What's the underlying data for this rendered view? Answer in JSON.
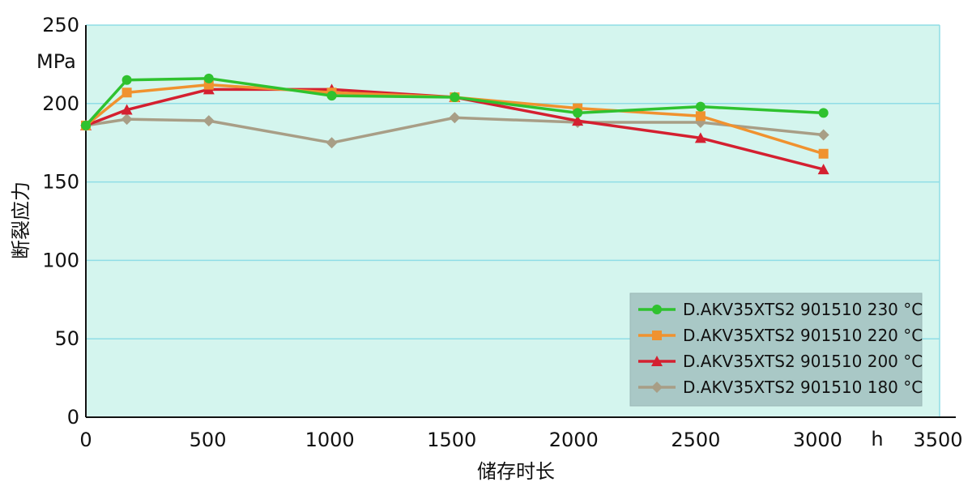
{
  "chart_data": {
    "type": "line",
    "title": "",
    "xlabel": "储存时长",
    "ylabel": "断裂应力",
    "y_unit": "MPa",
    "x_unit": "h",
    "xlim": [
      0,
      3500
    ],
    "ylim": [
      0,
      250
    ],
    "x_ticks": [
      0,
      500,
      1000,
      1500,
      2000,
      2500,
      3000,
      3500
    ],
    "y_ticks": [
      0,
      50,
      100,
      150,
      200,
      250
    ],
    "grid": "horizontal",
    "legend_position": "bottom-right",
    "series": [
      {
        "name": "D.AKV35XTS2 901510 230 °C",
        "color": "#2fc22f",
        "marker": "circle",
        "x": [
          0,
          168,
          504,
          1008,
          1512,
          2016,
          2520,
          3024
        ],
        "y": [
          186,
          215,
          216,
          205,
          204,
          194,
          198,
          194
        ]
      },
      {
        "name": "D.AKV35XTS2 901510 220 °C",
        "color": "#f0922f",
        "marker": "square",
        "x": [
          0,
          168,
          504,
          1008,
          1512,
          2016,
          2520,
          3024
        ],
        "y": [
          186,
          207,
          212,
          207,
          204,
          197,
          192,
          168
        ]
      },
      {
        "name": "D.AKV35XTS2 901510 200 °C",
        "color": "#d42030",
        "marker": "triangle",
        "x": [
          0,
          168,
          504,
          1008,
          1512,
          2016,
          2520,
          3024
        ],
        "y": [
          186,
          196,
          209,
          209,
          204,
          189,
          178,
          158
        ]
      },
      {
        "name": "D.AKV35XTS2 901510 180 °C",
        "color": "#a89e86",
        "marker": "diamond",
        "x": [
          0,
          168,
          504,
          1008,
          1512,
          2016,
          2520,
          3024
        ],
        "y": [
          186,
          190,
          189,
          175,
          191,
          188,
          188,
          180
        ]
      }
    ]
  }
}
